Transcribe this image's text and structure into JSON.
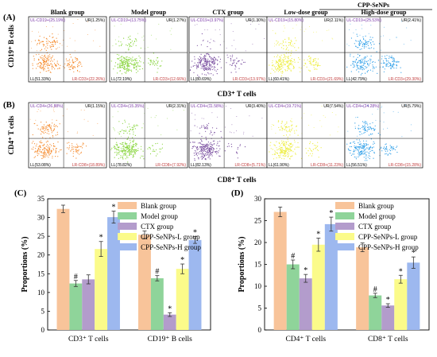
{
  "flow": {
    "panel_a_label": "(A)",
    "panel_b_label": "(B)",
    "group_bracket_label": "CPP-SeNPs",
    "columns": [
      "Blank group",
      "Model group",
      "CTX group",
      "Low-dose group",
      "High-dose group"
    ],
    "dot_colors": [
      "#f5892a",
      "#86d43a",
      "#7a4fa0",
      "#eded3a",
      "#2a9de8"
    ],
    "row_a": {
      "ylabel": "CD19⁺ B cells",
      "xlabel": "CD3⁺ T cells",
      "quadrants": [
        [
          "UL-CD19+(25.19%)",
          "UR(1.25%)",
          "LL(51.33%)",
          "LR-CD3+(22.26%)"
        ],
        [
          "UL-CD19+(13.75%)",
          "UR(1.27%)",
          "LL(72.19%)",
          "LR-CD3+(12.66%)"
        ],
        [
          "UL-CD19+(3.97%)",
          "UR(1.30%)",
          "LL(80.69%)",
          "LR-CD3+(13.97%)"
        ],
        [
          "UL-CD19+(15.80%)",
          "UR(2.11%)",
          "LL(60.41%)",
          "LR-CD3+(21.69%)"
        ],
        [
          "UL-CD19+(25.53%)",
          "UR(2.41%)",
          "LL(42.79%)",
          "LR-CD3+(29.30%)"
        ]
      ]
    },
    "row_b": {
      "ylabel": "CD4⁺ T cells",
      "xlabel": "CD8⁺ T cells",
      "quadrants": [
        [
          "UL-CD4+(26.88%)",
          "UR(1.15%)",
          "LL(53.08%)",
          "LR-CD8+(18.89%)"
        ],
        [
          "UL-CD4+(15.35%)",
          "UR(2.31%)",
          "LL(78.82%)",
          "LR-CD8+(7.92%)"
        ],
        [
          "UL-CD4+(11.58%)",
          "UR(3.40%)",
          "LL(82.13%)",
          "LR-CD8+(5.71%)"
        ],
        [
          "UL-CD4+(19.71%)",
          "UR(7.54%)",
          "LL(61.90%)",
          "LR-CD8+(11.23%)"
        ],
        [
          "UL-CD4+(24.28%)",
          "UR(5.79%)",
          "LL(56.51%)",
          "LR-CD8+(15.28%)"
        ]
      ]
    }
  },
  "chart_data": [
    {
      "panel": "(C)",
      "type": "bar",
      "ylabel": "Proportions (%)",
      "ylim": [
        0,
        35
      ],
      "yticks": [
        0,
        5,
        10,
        15,
        20,
        25,
        30,
        35
      ],
      "categories": [
        "CD3⁺ T cells",
        "CD19⁺ B cells"
      ],
      "series": [
        {
          "name": "Blank group",
          "color": "#f8c49a",
          "values": [
            32.3,
            25.4
          ],
          "errors": [
            1.0,
            1.0
          ],
          "marks": [
            "",
            ""
          ]
        },
        {
          "name": "Model group",
          "color": "#8fd49a",
          "values": [
            12.4,
            13.8
          ],
          "errors": [
            0.8,
            0.7
          ],
          "marks": [
            "#",
            "#"
          ]
        },
        {
          "name": "CTX group",
          "color": "#b39ccc",
          "values": [
            13.5,
            4.1
          ],
          "errors": [
            1.2,
            0.5
          ],
          "marks": [
            "",
            "*"
          ]
        },
        {
          "name": "CPP-SeNPs-L group",
          "color": "#fbfb8a",
          "values": [
            21.6,
            16.3
          ],
          "errors": [
            2.0,
            1.3
          ],
          "marks": [
            "*",
            "*"
          ]
        },
        {
          "name": "CPP-SeNPs-H group",
          "color": "#9db8ef",
          "values": [
            30.1,
            24.0
          ],
          "errors": [
            1.6,
            0.9
          ],
          "marks": [
            "*",
            "*"
          ]
        }
      ],
      "legend_position": "top-right"
    },
    {
      "panel": "(D)",
      "type": "bar",
      "ylabel": "Proportions (%)",
      "ylim": [
        0,
        30
      ],
      "yticks": [
        0,
        5,
        10,
        15,
        20,
        25,
        30
      ],
      "categories": [
        "CD4⁺ T cells",
        "CD8⁺ T cells"
      ],
      "series": [
        {
          "name": "Blank group",
          "color": "#f8c49a",
          "values": [
            27.0,
            18.9
          ],
          "errors": [
            1.1,
            1.0
          ],
          "marks": [
            "",
            ""
          ]
        },
        {
          "name": "Model group",
          "color": "#8fd49a",
          "values": [
            15.0,
            7.9
          ],
          "errors": [
            1.0,
            0.5
          ],
          "marks": [
            "#",
            "#"
          ]
        },
        {
          "name": "CTX group",
          "color": "#b39ccc",
          "values": [
            11.8,
            5.6
          ],
          "errors": [
            0.9,
            0.4
          ],
          "marks": [
            "*",
            "*"
          ]
        },
        {
          "name": "CPP-SeNPs-L group",
          "color": "#fbfb8a",
          "values": [
            19.5,
            11.6
          ],
          "errors": [
            1.5,
            0.9
          ],
          "marks": [
            "*",
            "*"
          ]
        },
        {
          "name": "CPP-SeNPs-H group",
          "color": "#9db8ef",
          "values": [
            24.2,
            15.4
          ],
          "errors": [
            1.6,
            1.3
          ],
          "marks": [
            "*",
            "*"
          ]
        }
      ],
      "legend_position": "top-right"
    }
  ]
}
